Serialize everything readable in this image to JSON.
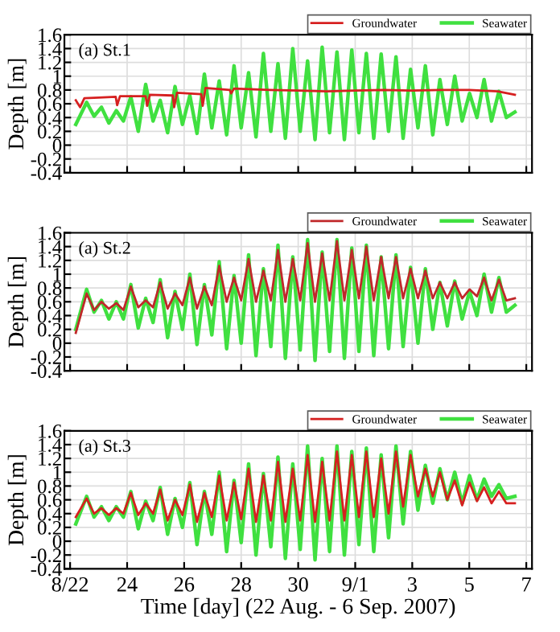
{
  "chart_data": [
    {
      "type": "line",
      "ylabel": "Depth [m]",
      "annotations": [
        "(a) St.1"
      ],
      "legend": "top right",
      "grid": true,
      "tick_labels": "y",
      "xlim": [
        "2007-08-21T19:12",
        "2007-09-07T04:48"
      ],
      "ylim": [
        -0.4,
        1.6
      ],
      "yticks": [
        -0.4,
        -0.2,
        0,
        0.2,
        0.4,
        0.6,
        0.8,
        1,
        1.2,
        1.4,
        1.6
      ],
      "xticks": [
        {
          "value": "2007-08-22",
          "label": null
        },
        {
          "value": "2007-08-24",
          "label": null
        },
        {
          "value": "2007-08-26",
          "label": null
        },
        {
          "value": "2007-08-28",
          "label": null
        },
        {
          "value": "2007-08-30",
          "label": null
        },
        {
          "value": "2007-09-01",
          "label": null
        },
        {
          "value": "2007-09-03",
          "label": null
        },
        {
          "value": "2007-09-05",
          "label": null
        },
        {
          "value": "2007-09-07",
          "label": null
        }
      ],
      "x": [
        "2007-08-22T04:48",
        "2007-08-22T13:55",
        "2007-08-22T20:10",
        "2007-08-23T02:24",
        "2007-08-23T08:38",
        "2007-08-23T14:53",
        "2007-08-23T20:53",
        "2007-08-24T03:07",
        "2007-08-24T09:22",
        "2007-08-24T15:36",
        "2007-08-24T21:50",
        "2007-08-25T03:50",
        "2007-08-25T10:05",
        "2007-08-25T16:19",
        "2007-08-25T22:34",
        "2007-08-26T04:48",
        "2007-08-26T10:48",
        "2007-08-26T17:02",
        "2007-08-26T23:17",
        "2007-08-27T05:31",
        "2007-08-27T11:46",
        "2007-08-27T18:00",
        "2007-08-28T00:00",
        "2007-08-28T06:14",
        "2007-08-28T12:29",
        "2007-08-28T18:43",
        "2007-08-29T00:58",
        "2007-08-29T06:58",
        "2007-08-29T13:12",
        "2007-08-29T19:26",
        "2007-08-30T01:41",
        "2007-08-30T07:55",
        "2007-08-30T14:10",
        "2007-08-30T20:10",
        "2007-08-31T02:24",
        "2007-08-31T08:38",
        "2007-08-31T14:53",
        "2007-08-31T21:07",
        "2007-09-01T03:07",
        "2007-09-01T09:22",
        "2007-09-01T15:36",
        "2007-09-01T21:50",
        "2007-09-02T04:05",
        "2007-09-02T10:19",
        "2007-09-02T16:19",
        "2007-09-02T22:34",
        "2007-09-03T04:48",
        "2007-09-03T11:02",
        "2007-09-03T17:17",
        "2007-09-03T23:17",
        "2007-09-04T05:31",
        "2007-09-04T11:46",
        "2007-09-04T18:00",
        "2007-09-05T00:14",
        "2007-09-05T06:29",
        "2007-09-05T12:29",
        "2007-09-05T18:43",
        "2007-09-06T00:58",
        "2007-09-06T07:12",
        "2007-09-06T14:24"
      ],
      "series": [
        {
          "name": "Groundwater",
          "color": "#d62020",
          "x": [
            "2007-08-22T04:48",
            "2007-08-22T08:24",
            "2007-08-22T12:00",
            "2007-08-23T00:00",
            "2007-08-23T14:24",
            "2007-08-23T15:36",
            "2007-08-23T18:00",
            "2007-08-24T15:36",
            "2007-08-24T16:48",
            "2007-08-24T19:12",
            "2007-08-25T14:24",
            "2007-08-25T15:36",
            "2007-08-25T18:00",
            "2007-08-26T14:24",
            "2007-08-26T15:36",
            "2007-08-26T18:00",
            "2007-08-27T14:24",
            "2007-08-27T15:36",
            "2007-08-27T18:00",
            "2007-08-29T00:00",
            "2007-08-30T00:00",
            "2007-08-31T00:00",
            "2007-09-01T00:00",
            "2007-09-02T00:00",
            "2007-09-03T00:00",
            "2007-09-04T00:00",
            "2007-09-05T00:00",
            "2007-09-06T00:00",
            "2007-09-06T14:24"
          ],
          "values": [
            0.65,
            0.55,
            0.68,
            0.69,
            0.7,
            0.58,
            0.71,
            0.71,
            0.57,
            0.73,
            0.72,
            0.55,
            0.76,
            0.74,
            0.57,
            0.83,
            0.8,
            0.75,
            0.82,
            0.8,
            0.79,
            0.78,
            0.79,
            0.8,
            0.79,
            0.8,
            0.8,
            0.78,
            0.73
          ]
        },
        {
          "name": "Seawater",
          "color": "#40e040",
          "values": [
            0.3,
            0.62,
            0.42,
            0.55,
            0.32,
            0.5,
            0.35,
            0.7,
            0.2,
            0.88,
            0.35,
            0.65,
            0.18,
            0.85,
            0.3,
            0.72,
            0.17,
            1.03,
            0.25,
            0.93,
            0.15,
            1.15,
            0.25,
            1.05,
            0.12,
            1.33,
            0.2,
            1.18,
            0.1,
            1.4,
            0.2,
            1.22,
            0.08,
            1.42,
            0.18,
            1.35,
            0.08,
            1.38,
            0.18,
            1.33,
            0.1,
            1.32,
            0.2,
            1.28,
            0.1,
            1.1,
            0.25,
            1.15,
            0.15,
            0.95,
            0.3,
            1.0,
            0.35,
            0.75,
            0.4,
            0.95,
            0.35,
            0.78,
            0.4,
            0.48
          ]
        }
      ]
    },
    {
      "type": "line",
      "ylabel": "Depth [m]",
      "annotations": [
        "(a) St.2"
      ],
      "legend": "top right",
      "grid": true,
      "tick_labels": "y",
      "xlim": [
        "2007-08-21T19:12",
        "2007-09-07T04:48"
      ],
      "ylim": [
        -0.4,
        1.6
      ],
      "yticks": [
        -0.4,
        -0.2,
        0,
        0.2,
        0.4,
        0.6,
        0.8,
        1,
        1.2,
        1.4,
        1.6
      ],
      "xticks": [
        {
          "value": "2007-08-22",
          "label": null
        },
        {
          "value": "2007-08-24",
          "label": null
        },
        {
          "value": "2007-08-26",
          "label": null
        },
        {
          "value": "2007-08-28",
          "label": null
        },
        {
          "value": "2007-08-30",
          "label": null
        },
        {
          "value": "2007-09-01",
          "label": null
        },
        {
          "value": "2007-09-03",
          "label": null
        },
        {
          "value": "2007-09-05",
          "label": null
        },
        {
          "value": "2007-09-07",
          "label": null
        }
      ],
      "x": [
        "2007-08-22T04:48",
        "2007-08-22T13:55",
        "2007-08-22T20:10",
        "2007-08-23T02:24",
        "2007-08-23T08:38",
        "2007-08-23T14:53",
        "2007-08-23T20:53",
        "2007-08-24T03:07",
        "2007-08-24T09:22",
        "2007-08-24T15:36",
        "2007-08-24T21:50",
        "2007-08-25T03:50",
        "2007-08-25T10:05",
        "2007-08-25T16:19",
        "2007-08-25T22:34",
        "2007-08-26T04:48",
        "2007-08-26T10:48",
        "2007-08-26T17:02",
        "2007-08-26T23:17",
        "2007-08-27T05:31",
        "2007-08-27T11:46",
        "2007-08-27T18:00",
        "2007-08-28T00:00",
        "2007-08-28T06:14",
        "2007-08-28T12:29",
        "2007-08-28T18:43",
        "2007-08-29T00:58",
        "2007-08-29T06:58",
        "2007-08-29T13:12",
        "2007-08-29T19:26",
        "2007-08-30T01:41",
        "2007-08-30T07:55",
        "2007-08-30T14:10",
        "2007-08-30T20:10",
        "2007-08-31T02:24",
        "2007-08-31T08:38",
        "2007-08-31T14:53",
        "2007-08-31T21:07",
        "2007-09-01T03:07",
        "2007-09-01T09:22",
        "2007-09-01T15:36",
        "2007-09-01T21:50",
        "2007-09-02T04:05",
        "2007-09-02T10:19",
        "2007-09-02T16:19",
        "2007-09-02T22:34",
        "2007-09-03T04:48",
        "2007-09-03T11:02",
        "2007-09-03T17:17",
        "2007-09-03T23:17",
        "2007-09-04T05:31",
        "2007-09-04T11:46",
        "2007-09-04T18:00",
        "2007-09-05T00:14",
        "2007-09-05T06:29",
        "2007-09-05T12:29",
        "2007-09-05T18:43",
        "2007-09-06T00:58",
        "2007-09-06T07:12",
        "2007-09-06T14:24"
      ],
      "series": [
        {
          "name": "Groundwater",
          "color": "#c0282a",
          "values": [
            0.15,
            0.72,
            0.48,
            0.6,
            0.5,
            0.58,
            0.48,
            0.82,
            0.52,
            0.62,
            0.52,
            0.88,
            0.5,
            0.72,
            0.55,
            0.95,
            0.5,
            0.82,
            0.55,
            1.12,
            0.6,
            0.95,
            0.62,
            1.22,
            0.6,
            1.05,
            0.62,
            1.35,
            0.6,
            1.22,
            0.62,
            1.45,
            0.6,
            1.3,
            0.62,
            1.48,
            0.62,
            1.35,
            0.65,
            1.4,
            0.62,
            1.25,
            0.65,
            1.25,
            0.65,
            1.08,
            0.65,
            1.05,
            0.65,
            0.88,
            0.65,
            0.88,
            0.65,
            0.78,
            0.68,
            0.95,
            0.62,
            0.92,
            0.62,
            0.65
          ]
        },
        {
          "name": "Seawater",
          "color": "#40e040",
          "values": [
            0.2,
            0.78,
            0.45,
            0.62,
            0.35,
            0.6,
            0.35,
            0.85,
            0.22,
            0.65,
            0.3,
            0.92,
            0.08,
            0.75,
            0.2,
            1.0,
            -0.02,
            0.85,
            0.12,
            1.18,
            -0.08,
            0.98,
            0.0,
            1.28,
            -0.18,
            1.08,
            -0.05,
            1.42,
            -0.22,
            1.25,
            -0.1,
            1.5,
            -0.25,
            1.32,
            -0.12,
            1.5,
            -0.22,
            1.38,
            -0.12,
            1.42,
            -0.18,
            1.25,
            -0.08,
            1.28,
            -0.05,
            1.1,
            0.0,
            1.08,
            0.2,
            0.88,
            0.25,
            0.9,
            0.35,
            0.75,
            0.4,
            1.0,
            0.45,
            0.95,
            0.45,
            0.55
          ]
        }
      ]
    },
    {
      "type": "line",
      "ylabel": "Depth [m]",
      "xlabel": "Time [day] (22 Aug. - 6 Sep. 2007)",
      "annotations": [
        "(a) St.3"
      ],
      "legend": "top right",
      "grid": true,
      "xlim": [
        "2007-08-21T19:12",
        "2007-09-07T04:48"
      ],
      "ylim": [
        -0.4,
        1.6
      ],
      "yticks": [
        -0.4,
        -0.2,
        0,
        0.2,
        0.4,
        0.6,
        0.8,
        1,
        1.2,
        1.4,
        1.6
      ],
      "xticks": [
        {
          "value": "2007-08-22",
          "label": "8/22"
        },
        {
          "value": "2007-08-24",
          "label": "24"
        },
        {
          "value": "2007-08-26",
          "label": "26"
        },
        {
          "value": "2007-08-28",
          "label": "28"
        },
        {
          "value": "2007-08-30",
          "label": "30"
        },
        {
          "value": "2007-09-01",
          "label": "9/1"
        },
        {
          "value": "2007-09-03",
          "label": "3"
        },
        {
          "value": "2007-09-05",
          "label": "5"
        },
        {
          "value": "2007-09-07",
          "label": "7"
        }
      ],
      "x": [
        "2007-08-22T04:48",
        "2007-08-22T13:55",
        "2007-08-22T20:10",
        "2007-08-23T02:24",
        "2007-08-23T08:38",
        "2007-08-23T14:53",
        "2007-08-23T20:53",
        "2007-08-24T03:07",
        "2007-08-24T09:22",
        "2007-08-24T15:36",
        "2007-08-24T21:50",
        "2007-08-25T03:50",
        "2007-08-25T10:05",
        "2007-08-25T16:19",
        "2007-08-25T22:34",
        "2007-08-26T04:48",
        "2007-08-26T10:48",
        "2007-08-26T17:02",
        "2007-08-26T23:17",
        "2007-08-27T05:31",
        "2007-08-27T11:46",
        "2007-08-27T18:00",
        "2007-08-28T00:00",
        "2007-08-28T06:14",
        "2007-08-28T12:29",
        "2007-08-28T18:43",
        "2007-08-29T00:58",
        "2007-08-29T06:58",
        "2007-08-29T13:12",
        "2007-08-29T19:26",
        "2007-08-30T01:41",
        "2007-08-30T07:55",
        "2007-08-30T14:10",
        "2007-08-30T20:10",
        "2007-08-31T02:24",
        "2007-08-31T08:38",
        "2007-08-31T14:53",
        "2007-08-31T21:07",
        "2007-09-01T03:07",
        "2007-09-01T09:22",
        "2007-09-01T15:36",
        "2007-09-01T21:50",
        "2007-09-02T04:05",
        "2007-09-02T10:19",
        "2007-09-02T16:19",
        "2007-09-02T22:34",
        "2007-09-03T04:48",
        "2007-09-03T11:02",
        "2007-09-03T17:17",
        "2007-09-03T23:17",
        "2007-09-04T05:31",
        "2007-09-04T11:46",
        "2007-09-04T18:00",
        "2007-09-05T00:14",
        "2007-09-05T06:29",
        "2007-09-05T12:29",
        "2007-09-05T18:43",
        "2007-09-06T00:58",
        "2007-09-06T07:12",
        "2007-09-06T14:24"
      ],
      "series": [
        {
          "name": "Groundwater",
          "color": "#d62020",
          "values": [
            0.35,
            0.62,
            0.4,
            0.48,
            0.38,
            0.48,
            0.4,
            0.7,
            0.38,
            0.55,
            0.4,
            0.75,
            0.3,
            0.6,
            0.38,
            0.82,
            0.28,
            0.7,
            0.35,
            0.95,
            0.3,
            0.85,
            0.32,
            1.05,
            0.28,
            0.95,
            0.3,
            1.15,
            0.28,
            1.05,
            0.3,
            1.25,
            0.28,
            1.15,
            0.3,
            1.3,
            0.3,
            1.25,
            0.35,
            1.3,
            0.35,
            1.2,
            0.4,
            1.3,
            0.5,
            1.25,
            0.65,
            1.05,
            0.65,
            1.0,
            0.6,
            0.88,
            0.52,
            0.85,
            0.58,
            0.78,
            0.55,
            0.72,
            0.55,
            0.55
          ]
        },
        {
          "name": "Seawater",
          "color": "#40e040",
          "values": [
            0.25,
            0.65,
            0.35,
            0.5,
            0.3,
            0.5,
            0.35,
            0.72,
            0.18,
            0.58,
            0.3,
            0.78,
            0.1,
            0.62,
            0.2,
            0.85,
            -0.05,
            0.72,
            0.1,
            1.0,
            -0.15,
            0.88,
            -0.02,
            1.12,
            -0.2,
            0.98,
            -0.08,
            1.22,
            -0.25,
            1.12,
            -0.12,
            1.38,
            -0.27,
            1.2,
            -0.15,
            1.38,
            -0.2,
            1.3,
            -0.05,
            1.35,
            -0.15,
            1.25,
            0.05,
            1.38,
            0.25,
            1.3,
            0.45,
            1.1,
            0.55,
            1.05,
            0.6,
            1.0,
            0.55,
            0.95,
            0.6,
            0.9,
            0.65,
            0.82,
            0.62,
            0.65
          ]
        }
      ]
    }
  ]
}
